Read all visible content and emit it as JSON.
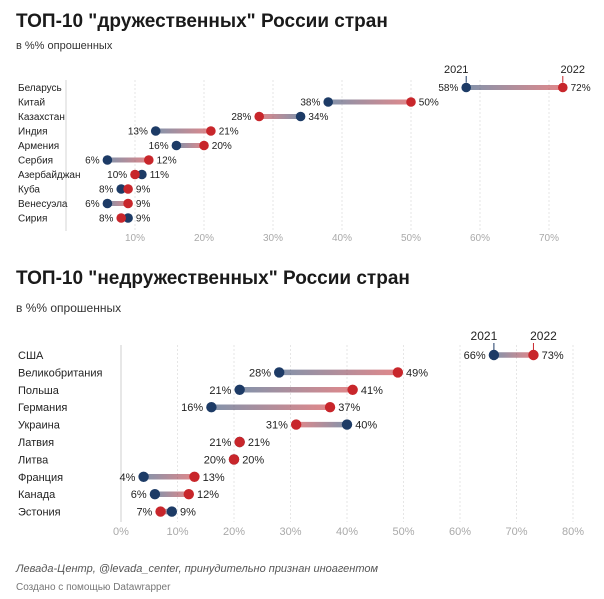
{
  "chart_data": [
    {
      "type": "dumbbell",
      "title": "ТОП-10 \"дружественных\" России стран",
      "subtitle": "в %% опрошенных",
      "series": [
        {
          "name": "2021",
          "color": "#1d3b66"
        },
        {
          "name": "2022",
          "color": "#c8262b"
        }
      ],
      "categories": [
        "Беларусь",
        "Китай",
        "Казахстан",
        "Индия",
        "Армения",
        "Сербия",
        "Азербайджан",
        "Куба",
        "Венесуэла",
        "Сирия"
      ],
      "values_2021": [
        58,
        38,
        34,
        13,
        16,
        6,
        11,
        8,
        6,
        9
      ],
      "values_2022": [
        72,
        50,
        28,
        21,
        20,
        12,
        10,
        9,
        9,
        8
      ],
      "x_ticks": [
        "10%",
        "20%",
        "30%",
        "40%",
        "50%",
        "60%",
        "70%"
      ],
      "xlim": [
        0,
        75
      ],
      "value_suffix": "%"
    },
    {
      "type": "dumbbell",
      "title": "ТОП-10 \"недружественных\" России стран",
      "subtitle": "в %% опрошенных",
      "series": [
        {
          "name": "2021",
          "color": "#1d3b66"
        },
        {
          "name": "2022",
          "color": "#c8262b"
        }
      ],
      "categories": [
        "США",
        "Великобритания",
        "Польша",
        "Германия",
        "Украина",
        "Латвия",
        "Литва",
        "Франция",
        "Канада",
        "Эстония"
      ],
      "values_2021": [
        66,
        28,
        21,
        16,
        40,
        21,
        20,
        4,
        6,
        9
      ],
      "values_2022": [
        73,
        49,
        41,
        37,
        31,
        21,
        20,
        13,
        12,
        7
      ],
      "x_ticks": [
        "0%",
        "10%",
        "20%",
        "30%",
        "40%",
        "50%",
        "60%",
        "70%",
        "80%"
      ],
      "xlim": [
        0,
        80
      ],
      "value_suffix": "%"
    }
  ],
  "footer": {
    "source": "Левада-Центр, @levada_center, принудительно признан иноагентом",
    "credit": "Создано с помощью Datawrapper"
  }
}
